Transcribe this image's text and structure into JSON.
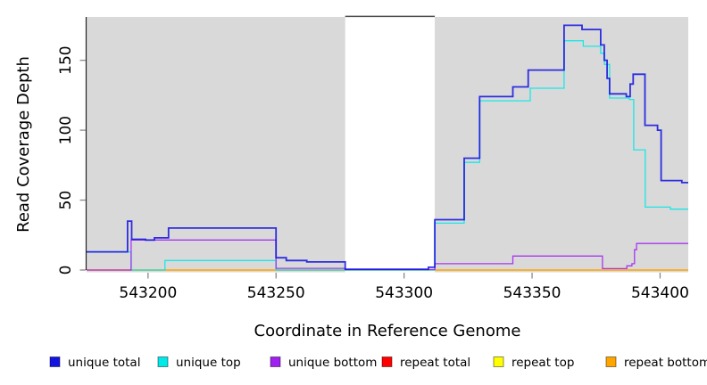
{
  "figure": {
    "background": "#ffffff"
  },
  "chart_data": {
    "type": "step-line",
    "title": "",
    "xlabel": "Coordinate in Reference Genome",
    "ylabel": "Read Coverage Depth",
    "x_ticks": [
      543200,
      543250,
      543300,
      543350,
      543400
    ],
    "y_ticks": [
      0,
      50,
      100,
      150
    ],
    "x_range": [
      543176,
      543411
    ],
    "y_range": [
      -1.6,
      181
    ],
    "grid": false,
    "legend_position": "bottom",
    "plot_bg_color": "#d9d9d9",
    "axis_color": "#262626",
    "tick_color": "#8a8a8a",
    "text_color": "#000000",
    "gap_region": {
      "x_start": 543277,
      "x_end": 543312,
      "color": "#ffffff",
      "border_top_color": "#4d4d4d"
    },
    "series": [
      {
        "name": "repeat total",
        "color": "#ff0000",
        "steps": [
          [
            543176,
            0
          ]
        ]
      },
      {
        "name": "repeat top",
        "color": "#ffff00",
        "steps": [
          [
            543176,
            0
          ]
        ]
      },
      {
        "name": "repeat bottom",
        "color": "#ffa500",
        "steps": [
          [
            543176,
            0
          ]
        ]
      },
      {
        "name": "unique top",
        "color": "#00e8e8",
        "steps": [
          [
            543176,
            13
          ],
          [
            543193.4,
            0
          ],
          [
            543206.6,
            6.8
          ],
          [
            543250,
            0
          ],
          [
            543312,
            33.5
          ],
          [
            543323.5,
            77
          ],
          [
            543329.5,
            121
          ],
          [
            543349.3,
            130
          ],
          [
            543362.5,
            164
          ],
          [
            543370,
            160
          ],
          [
            543376.8,
            155
          ],
          [
            543378.3,
            147
          ],
          [
            543380.3,
            123
          ],
          [
            543388,
            122
          ],
          [
            543389.7,
            86
          ],
          [
            543394.2,
            45
          ],
          [
            543404,
            43.5
          ]
        ]
      },
      {
        "name": "unique bottom",
        "color": "#a020f0",
        "steps": [
          [
            543176,
            0
          ],
          [
            543193.4,
            21.5
          ],
          [
            543250,
            1.2
          ],
          [
            543277,
            0.4
          ],
          [
            543312,
            4.5
          ],
          [
            543342.5,
            10
          ],
          [
            543377.5,
            1
          ],
          [
            543387,
            3
          ],
          [
            543389,
            4.5
          ],
          [
            543390,
            14.5
          ],
          [
            543390.8,
            19
          ]
        ]
      },
      {
        "name": "unique total",
        "color": "#1414e0",
        "steps": [
          [
            543176,
            13
          ],
          [
            543192,
            35
          ],
          [
            543193.6,
            22
          ],
          [
            543199,
            21.4
          ],
          [
            543202.5,
            23
          ],
          [
            543208,
            30
          ],
          [
            543250,
            8.8
          ],
          [
            543254,
            6.8
          ],
          [
            543262,
            5.8
          ],
          [
            543277,
            0.5
          ],
          [
            543309.5,
            2
          ],
          [
            543312,
            36
          ],
          [
            543323.5,
            80
          ],
          [
            543329.5,
            124
          ],
          [
            543342.5,
            131
          ],
          [
            543348.5,
            143
          ],
          [
            543362.5,
            175
          ],
          [
            543369.5,
            172
          ],
          [
            543376.8,
            161
          ],
          [
            543378.2,
            150
          ],
          [
            543379.3,
            137
          ],
          [
            543380.3,
            126
          ],
          [
            543386.8,
            124
          ],
          [
            543388.3,
            133
          ],
          [
            543389.5,
            140
          ],
          [
            543394.1,
            103.5
          ],
          [
            543399,
            100
          ],
          [
            543400.4,
            64
          ],
          [
            543408.5,
            62.5
          ]
        ]
      }
    ],
    "legend_order": [
      "unique total",
      "unique top",
      "unique bottom",
      "repeat total",
      "repeat top",
      "repeat bottom"
    ]
  }
}
